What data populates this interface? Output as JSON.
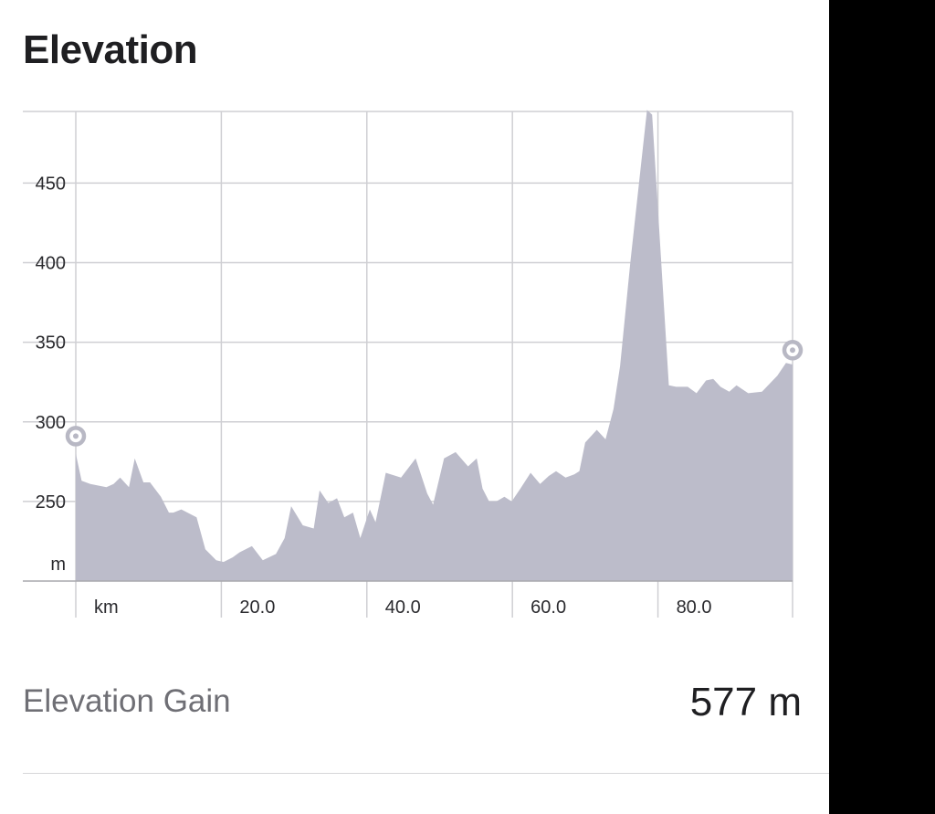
{
  "header": {
    "title": "Elevation"
  },
  "stats": {
    "gain_label": "Elevation Gain",
    "gain_value": "577 m"
  },
  "colors": {
    "area_fill": "#bcbcca",
    "grid": "#cfcfd3",
    "marker": "#b8b8c4"
  },
  "chart_data": {
    "type": "area",
    "title": "",
    "xlabel": "km",
    "ylabel": "m",
    "xlim": [
      0,
      98.5
    ],
    "ylim": [
      200,
      495
    ],
    "x_ticks": [
      20,
      40,
      60,
      80
    ],
    "x_tick_labels": [
      "20.0",
      "40.0",
      "60.0",
      "80.0"
    ],
    "y_ticks": [
      250,
      300,
      350,
      400,
      450
    ],
    "y_tick_labels": [
      "250",
      "300",
      "350",
      "400",
      "450"
    ],
    "grid": true,
    "legend": "none",
    "series": [
      {
        "x": [
          0,
          0.8,
          2,
          4.2,
          5.2,
          6.1,
          7.3,
          8.1,
          9.3,
          10.2,
          11.7,
          12.8,
          13.4,
          14.5,
          16.6,
          17.8,
          19.3,
          20.3,
          21.6,
          22.5,
          24.2,
          25.7,
          27.5,
          28.7,
          29.6,
          31.2,
          32.7,
          33.5,
          34.7,
          35.9,
          36.9,
          38.1,
          39.1,
          40.4,
          41.2,
          42.6,
          44.7,
          46.7,
          48.3,
          49.1,
          50.6,
          52.2,
          53.9,
          55.1,
          55.9,
          56.8,
          57.8,
          58.9,
          59.9,
          61.1,
          62.5,
          63.8,
          65,
          66,
          67.3,
          68.5,
          69.2,
          70,
          71.6,
          72.8,
          73.9,
          74.8,
          76.2,
          78.5,
          79.2,
          81.5,
          82.5,
          84.1,
          85.3,
          86.6,
          87.6,
          88.6,
          89.8,
          90.8,
          92.4,
          94.3,
          96.4,
          97.6,
          98.5
        ],
        "y": [
          280,
          263,
          261,
          259,
          261,
          265,
          259,
          277,
          262,
          262,
          253,
          243,
          243,
          245,
          240,
          220,
          213,
          212,
          215,
          218,
          222,
          213,
          217,
          227,
          247,
          235,
          233,
          257,
          249,
          252,
          240,
          243,
          227,
          245,
          237,
          268,
          265,
          277,
          255,
          248,
          277,
          281,
          272,
          277,
          258,
          250,
          250,
          253,
          250,
          258,
          268,
          261,
          266,
          269,
          265,
          267,
          269,
          287,
          295,
          289,
          308,
          335,
          400,
          496,
          493,
          323,
          322,
          322,
          318,
          326,
          327,
          322,
          319,
          323,
          318,
          319,
          329,
          337,
          336
        ]
      }
    ]
  }
}
